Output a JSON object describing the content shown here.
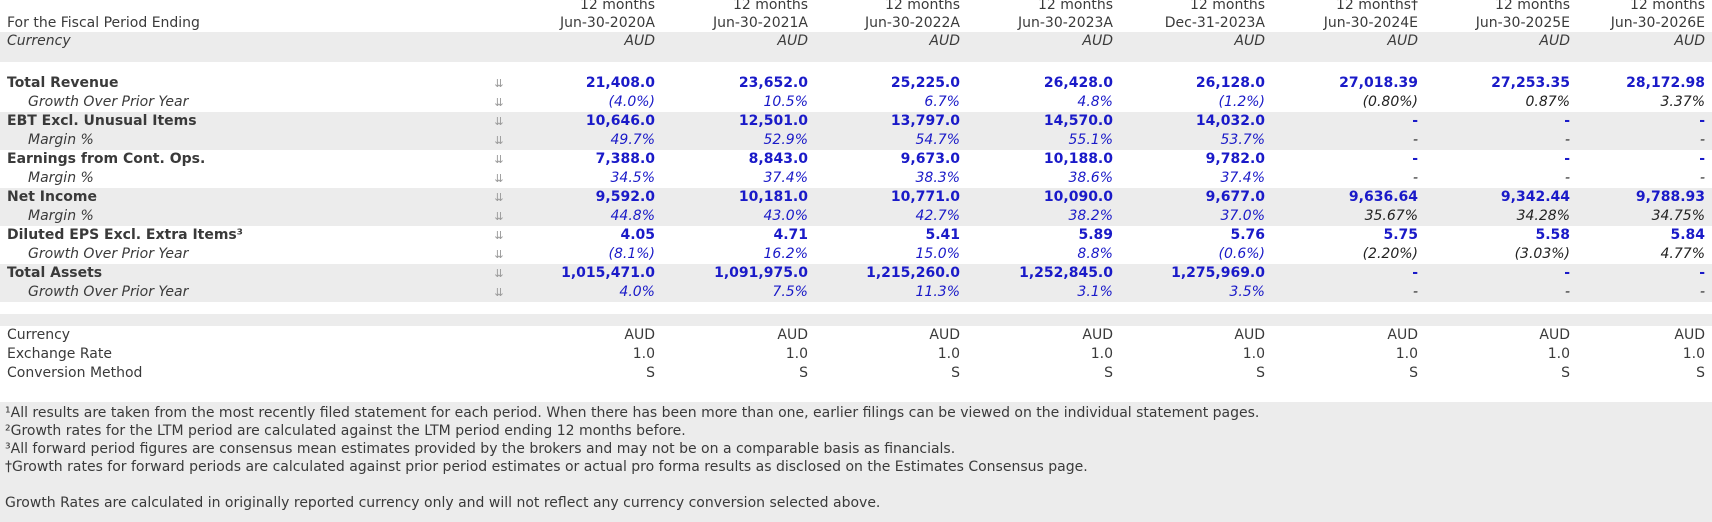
{
  "header": {
    "period_label": "For the Fiscal Period Ending",
    "currency_label": "Currency",
    "columns": [
      {
        "months": "12 months",
        "date": "Jun-30-2020A",
        "currency": "AUD"
      },
      {
        "months": "12 months",
        "date": "Jun-30-2021A",
        "currency": "AUD"
      },
      {
        "months": "12 months",
        "date": "Jun-30-2022A",
        "currency": "AUD"
      },
      {
        "months": "12 months",
        "date": "Jun-30-2023A",
        "currency": "AUD"
      },
      {
        "months": "12 months",
        "date": "Dec-31-2023A",
        "currency": "AUD"
      },
      {
        "months": "12 months†",
        "date": "Jun-30-2024E",
        "currency": "AUD"
      },
      {
        "months": "12 months",
        "date": "Jun-30-2025E",
        "currency": "AUD"
      },
      {
        "months": "12 months",
        "date": "Jun-30-2026E",
        "currency": "AUD"
      }
    ]
  },
  "rows": [
    {
      "label": "Total Revenue",
      "values": [
        "21,408.0",
        "23,652.0",
        "25,225.0",
        "26,428.0",
        "26,128.0",
        "27,018.39",
        "27,253.35",
        "28,172.98"
      ]
    },
    {
      "label": "Growth Over Prior Year",
      "values": [
        "(4.0%)",
        "10.5%",
        "6.7%",
        "4.8%",
        "(1.2%)",
        "(0.80%)",
        "0.87%",
        "3.37%"
      ]
    },
    {
      "label": "EBT Excl. Unusual Items",
      "values": [
        "10,646.0",
        "12,501.0",
        "13,797.0",
        "14,570.0",
        "14,032.0",
        "-",
        "-",
        "-"
      ]
    },
    {
      "label": "Margin %",
      "values": [
        "49.7%",
        "52.9%",
        "54.7%",
        "55.1%",
        "53.7%",
        "-",
        "-",
        "-"
      ]
    },
    {
      "label": "Earnings from Cont. Ops.",
      "values": [
        "7,388.0",
        "8,843.0",
        "9,673.0",
        "10,188.0",
        "9,782.0",
        "-",
        "-",
        "-"
      ]
    },
    {
      "label": "Margin %",
      "values": [
        "34.5%",
        "37.4%",
        "38.3%",
        "38.6%",
        "37.4%",
        "-",
        "-",
        "-"
      ]
    },
    {
      "label": "Net Income",
      "values": [
        "9,592.0",
        "10,181.0",
        "10,771.0",
        "10,090.0",
        "9,677.0",
        "9,636.64",
        "9,342.44",
        "9,788.93"
      ]
    },
    {
      "label": "Margin %",
      "values": [
        "44.8%",
        "43.0%",
        "42.7%",
        "38.2%",
        "37.0%",
        "35.67%",
        "34.28%",
        "34.75%"
      ]
    },
    {
      "label": "Diluted EPS Excl. Extra Items³",
      "values": [
        "4.05",
        "4.71",
        "5.41",
        "5.89",
        "5.76",
        "5.75",
        "5.58",
        "5.84"
      ]
    },
    {
      "label": "Growth Over Prior Year",
      "values": [
        "(8.1%)",
        "16.2%",
        "15.0%",
        "8.8%",
        "(0.6%)",
        "(2.20%)",
        "(3.03%)",
        "4.77%"
      ]
    },
    {
      "label": "Total Assets",
      "values": [
        "1,015,471.0",
        "1,091,975.0",
        "1,215,260.0",
        "1,252,845.0",
        "1,275,969.0",
        "-",
        "-",
        "-"
      ]
    },
    {
      "label": "Growth Over Prior Year",
      "values": [
        "4.0%",
        "7.5%",
        "11.3%",
        "3.1%",
        "3.5%",
        "-",
        "-",
        "-"
      ]
    }
  ],
  "footer_rows": [
    {
      "label": "Currency",
      "values": [
        "AUD",
        "AUD",
        "AUD",
        "AUD",
        "AUD",
        "AUD",
        "AUD",
        "AUD"
      ]
    },
    {
      "label": "Exchange Rate",
      "values": [
        "1.0",
        "1.0",
        "1.0",
        "1.0",
        "1.0",
        "1.0",
        "1.0",
        "1.0"
      ]
    },
    {
      "label": "Conversion Method",
      "values": [
        "S",
        "S",
        "S",
        "S",
        "S",
        "S",
        "S",
        "S"
      ]
    }
  ],
  "notes": [
    "¹All results are taken from the most recently filed statement for each period. When there has been more than one, earlier filings can be viewed on the individual statement pages.",
    "²Growth rates for the LTM period are calculated against the LTM period ending 12 months before.",
    "³All forward period figures are consensus mean estimates provided by the brokers and may not be on a comparable basis as financials.",
    "†Growth rates for forward periods are calculated against prior period estimates or actual pro forma results as disclosed on the Estimates Consensus page.",
    "",
    "Growth Rates are calculated in originally reported currency only and will not reflect any currency conversion selected above."
  ],
  "icon": "chart-link-icon",
  "colors": {
    "actual_value": "#1a1ac8",
    "estimate_value": "#222222",
    "band": "#ececec"
  }
}
